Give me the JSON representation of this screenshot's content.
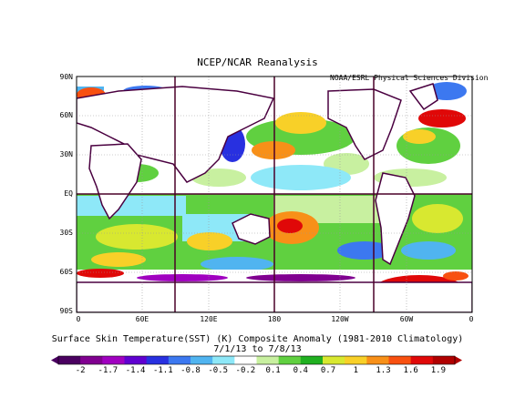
{
  "title": "NCEP/NCAR Reanalysis",
  "credit": "NOAA/ESRL Physical Sciences Division",
  "lat_labels": [
    "90N",
    "60N",
    "30N",
    "EQ",
    "30S",
    "60S",
    "90S"
  ],
  "lon_labels": [
    "0",
    "60E",
    "120E",
    "180",
    "120W",
    "60W",
    "0"
  ],
  "caption_line1": "Surface Skin Temperature(SST) (K) Composite Anomaly (1981-2010 Climatology)",
  "caption_line2": "7/1/13  to 7/8/13",
  "colorbar": {
    "labels": [
      "-2",
      "-1.7",
      "-1.4",
      "-1.1",
      "-0.8",
      "-0.5",
      "-0.2",
      "0.1",
      "0.4",
      "0.7",
      "1",
      "1.3",
      "1.6",
      "1.9"
    ],
    "colors": [
      "#4a0060",
      "#800090",
      "#a000c0",
      "#6000d0",
      "#2830e0",
      "#3c78f0",
      "#50b4f0",
      "#8ee8f8",
      "#ffffff",
      "#c8f0a0",
      "#60d040",
      "#20b020",
      "#d8e830",
      "#f8d028",
      "#f89018",
      "#f85010",
      "#e00808",
      "#b00000"
    ]
  }
}
